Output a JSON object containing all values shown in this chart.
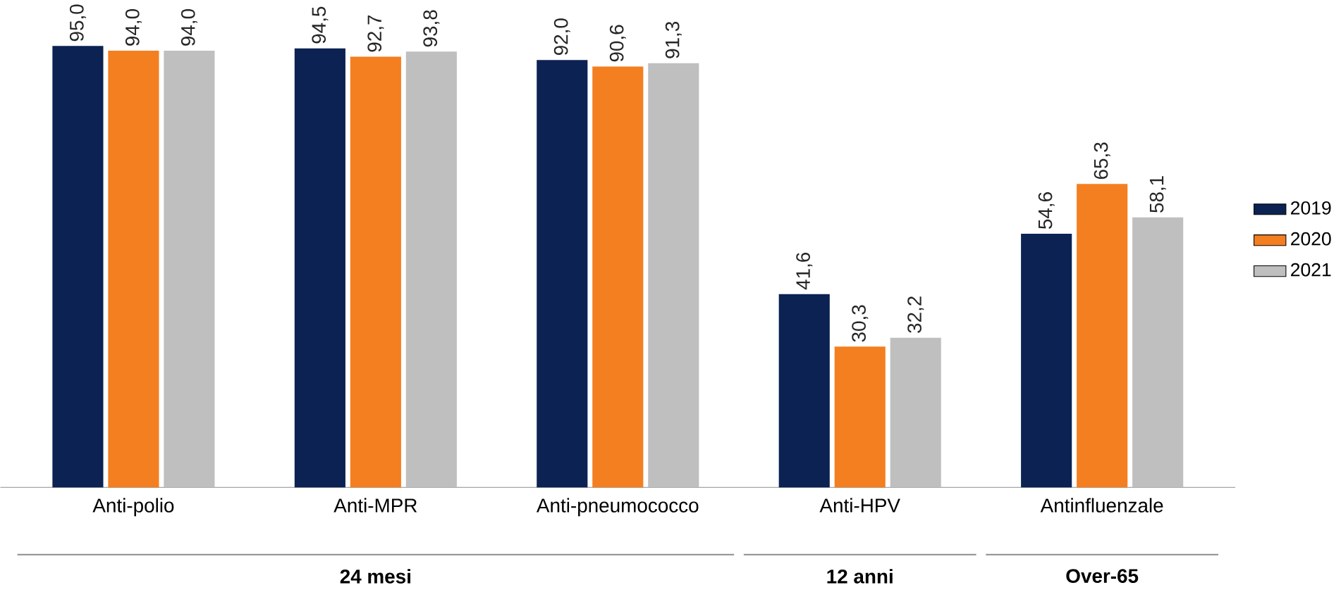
{
  "chart_data": {
    "type": "bar",
    "categories": [
      "Anti-polio",
      "Anti-MPR",
      "Anti-pneumococco",
      "Anti-HPV",
      "Antinfluenzale"
    ],
    "series": [
      {
        "name": "2019",
        "color": "#0b2252",
        "values": [
          95.0,
          94.5,
          92.0,
          41.6,
          54.6
        ],
        "value_labels": [
          "95,0",
          "94,5",
          "92,0",
          "41,6",
          "54,6"
        ]
      },
      {
        "name": "2020",
        "color": "#f47f20",
        "values": [
          94.0,
          92.7,
          90.6,
          30.3,
          65.3
        ],
        "value_labels": [
          "94,0",
          "92,7",
          "90,6",
          "30,3",
          "65,3"
        ]
      },
      {
        "name": "2021",
        "color": "#bfbfbf",
        "values": [
          94.0,
          93.8,
          91.3,
          32.2,
          58.1
        ],
        "value_labels": [
          "94,0",
          "93,8",
          "91,3",
          "32,2",
          "58,1"
        ]
      }
    ],
    "annotations": [
      "24 mesi",
      "12 anni",
      "Over-65"
    ],
    "legend": "right"
  }
}
